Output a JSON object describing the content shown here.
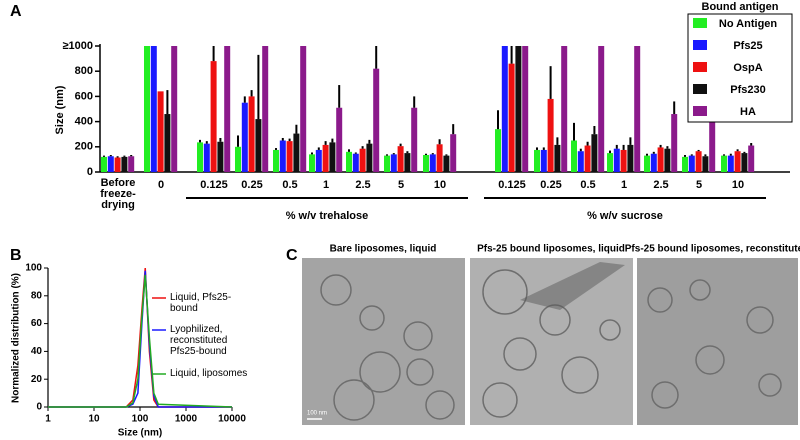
{
  "chart_data": [
    {
      "type": "bar",
      "panel_label": "A",
      "y_label": "Size (nm)",
      "legend_title": "Bound antigen",
      "categories": [
        "Before freeze-drying",
        "0",
        "0.125",
        "0.25",
        "0.5",
        "1",
        "2.5",
        "5",
        "10",
        "0.125",
        "0.25",
        "0.5",
        "1",
        "2.5",
        "5",
        "10"
      ],
      "group_labels": [
        "% w/v trehalose",
        "% w/v sucrose"
      ],
      "ylim": [
        0,
        1000
      ],
      "yticks": [
        0,
        200,
        400,
        600,
        800,
        {
          "value": 1000,
          "label": "≥1000"
        }
      ],
      "series": [
        {
          "name": "No Antigen",
          "color": "#22ee22",
          "values": [
            120,
            1000,
            235,
            200,
            175,
            140,
            160,
            130,
            135,
            340,
            175,
            250,
            150,
            130,
            120,
            130
          ],
          "errors": [
            10,
            0,
            20,
            90,
            15,
            15,
            20,
            10,
            10,
            150,
            20,
            140,
            20,
            15,
            15,
            10
          ]
        },
        {
          "name": "Pfs25",
          "color": "#1a1aff",
          "values": [
            125,
            1000,
            225,
            550,
            250,
            175,
            145,
            140,
            140,
            1000,
            175,
            165,
            185,
            145,
            130,
            130
          ],
          "errors": [
            10,
            0,
            20,
            50,
            20,
            20,
            10,
            10,
            10,
            0,
            20,
            20,
            30,
            15,
            10,
            15
          ]
        },
        {
          "name": "OspA",
          "color": "#ee1111",
          "values": [
            115,
            640,
            880,
            600,
            245,
            215,
            185,
            205,
            220,
            860,
            580,
            210,
            175,
            195,
            165,
            165
          ],
          "errors": [
            10,
            0,
            120,
            50,
            20,
            30,
            20,
            20,
            40,
            140,
            260,
            30,
            40,
            20,
            10,
            15
          ]
        },
        {
          "name": "Pfs230",
          "color": "#111111",
          "values": [
            120,
            460,
            240,
            420,
            305,
            235,
            225,
            150,
            130,
            1000,
            215,
            300,
            215,
            185,
            125,
            150
          ],
          "errors": [
            10,
            190,
            30,
            510,
            70,
            30,
            30,
            15,
            10,
            0,
            60,
            65,
            60,
            20,
            15,
            10
          ]
        },
        {
          "name": "HA",
          "color": "#8b1a8b",
          "values": [
            125,
            1000,
            1000,
            1000,
            1000,
            510,
            820,
            510,
            300,
            1000,
            1000,
            1000,
            1000,
            460,
            460,
            210
          ],
          "errors": [
            10,
            0,
            0,
            0,
            0,
            180,
            180,
            90,
            80,
            0,
            0,
            0,
            0,
            100,
            100,
            20
          ]
        }
      ]
    },
    {
      "type": "line",
      "panel_label": "B",
      "x_label": "Size (nm)",
      "y_label": "Normalized distribution (%)",
      "xscale": "log",
      "xlim": [
        1,
        10000
      ],
      "xticks": [
        1,
        10,
        100,
        1000,
        10000
      ],
      "ylim": [
        0,
        100
      ],
      "yticks": [
        0,
        20,
        40,
        60,
        80,
        100
      ],
      "x": [
        1,
        50,
        70,
        90,
        110,
        130,
        160,
        200,
        250,
        10000
      ],
      "series": [
        {
          "name": "Liquid, Pfs25-bound",
          "color": "#ee1111",
          "values": [
            0,
            0,
            5,
            30,
            70,
            100,
            40,
            5,
            0,
            0
          ]
        },
        {
          "name": "Lyophilized, reconstituted Pfs25-bound",
          "color": "#1a1aff",
          "values": [
            0,
            0,
            2,
            10,
            60,
            98,
            45,
            8,
            0,
            0
          ]
        },
        {
          "name": "Liquid, liposomes",
          "color": "#22aa22",
          "values": [
            0,
            0,
            3,
            20,
            65,
            95,
            50,
            10,
            2,
            0
          ]
        }
      ]
    }
  ],
  "panel_c": {
    "panel_label": "C",
    "scale_bar": "100 nm",
    "images": [
      {
        "title": "Bare liposomes, liquid"
      },
      {
        "title": "Pfs-25 bound liposomes, liquid"
      },
      {
        "title": "Pfs-25 bound liposomes, reconstituted"
      }
    ]
  }
}
